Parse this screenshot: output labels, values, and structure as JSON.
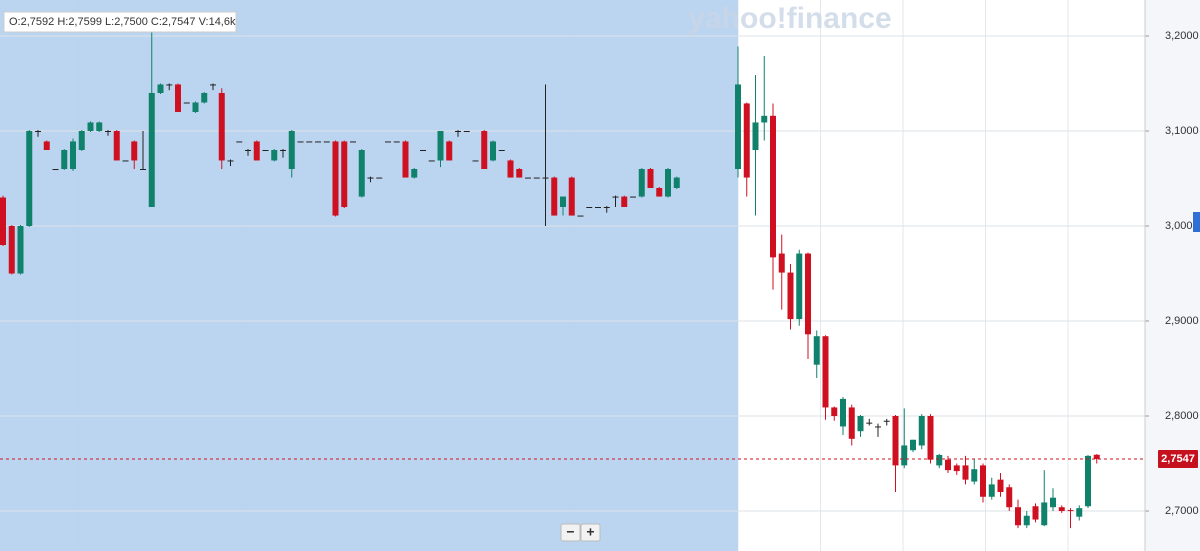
{
  "chart_data": {
    "type": "candlestick",
    "ohlc_label": "O:2,7592  H:2,7599  L:2,7500  C:2,7547  V:14,6k",
    "watermark": "yahoo!finance",
    "zoom_buttons": [
      "−",
      "+"
    ],
    "up_color": "#10816b",
    "down_color": "#cf1020",
    "flat_color": "#222222",
    "grid": true,
    "ylim": [
      2.6579,
      3.2379
    ],
    "yticks": [
      {
        "value": 3.2,
        "label": "3,2000"
      },
      {
        "value": 3.1,
        "label": "3,1000"
      },
      {
        "value": 3.0,
        "label": "3,0000"
      },
      {
        "value": 2.9,
        "label": "2,9000"
      },
      {
        "value": 2.8,
        "label": "2,8000"
      },
      {
        "value": 2.7,
        "label": "2,7000"
      }
    ],
    "last_price": {
      "value": 2.7547,
      "label": "2,7547"
    },
    "open": [
      3.03,
      3.0,
      2.95,
      3.0,
      3.1,
      3.089,
      3.06,
      3.06,
      3.06,
      3.08,
      3.1,
      3.1,
      3.1,
      3.1,
      3.069,
      3.089,
      3.06,
      3.02,
      3.14,
      3.149,
      3.149,
      3.13,
      3.12,
      3.13,
      3.149,
      3.14,
      3.069,
      3.089,
      3.08,
      3.089,
      3.08,
      3.069,
      3.08,
      3.06,
      3.089,
      3.089,
      3.089,
      3.089,
      3.089,
      3.089,
      3.089,
      3.031,
      3.051,
      3.051,
      3.089,
      3.089,
      3.089,
      3.051,
      3.08,
      3.069,
      3.069,
      3.089,
      3.1,
      3.1,
      3.069,
      3.1,
      3.069,
      3.08,
      3.069,
      3.06,
      3.051,
      3.051,
      3.051,
      3.051,
      3.02,
      3.051,
      3.011,
      3.02,
      3.02,
      3.02,
      3.031,
      3.031,
      3.031,
      3.031,
      3.06,
      3.04,
      3.031,
      3.04,
      null,
      null,
      null,
      null,
      null,
      null,
      3.06,
      3.129,
      3.08,
      3.109,
      3.116,
      2.971,
      2.951,
      2.902,
      2.971,
      2.854,
      2.884,
      2.809,
      2.789,
      2.809,
      2.784,
      2.793,
      2.789,
      2.795,
      2.8,
      2.748,
      2.764,
      2.769,
      2.8,
      2.748,
      2.754,
      2.748,
      2.748,
      2.731,
      2.748,
      2.715,
      2.733,
      2.725,
      2.704,
      2.685,
      2.705,
      2.685,
      2.704,
      2.704,
      2.701,
      2.694,
      2.705,
      2.7592
    ],
    "high": [
      3.032,
      3.001,
      3.001,
      3.101,
      3.101,
      3.09,
      3.06,
      3.081,
      3.092,
      3.101,
      3.11,
      3.11,
      3.101,
      3.101,
      3.069,
      3.09,
      3.1,
      3.206,
      3.15,
      3.15,
      3.15,
      3.13,
      3.131,
      3.141,
      3.15,
      3.145,
      3.07,
      3.089,
      3.081,
      3.09,
      3.08,
      3.081,
      3.081,
      3.101,
      3.089,
      3.089,
      3.089,
      3.089,
      3.09,
      3.09,
      3.089,
      3.081,
      3.052,
      3.051,
      3.089,
      3.089,
      3.09,
      3.061,
      3.08,
      3.069,
      3.1,
      3.09,
      3.101,
      3.1,
      3.069,
      3.101,
      3.09,
      3.08,
      3.07,
      3.061,
      3.051,
      3.051,
      3.149,
      3.052,
      3.031,
      3.052,
      3.011,
      3.02,
      3.02,
      3.021,
      3.032,
      3.032,
      3.031,
      3.061,
      3.061,
      3.041,
      3.061,
      3.052,
      null,
      null,
      null,
      null,
      null,
      null,
      3.189,
      3.13,
      3.159,
      3.179,
      3.129,
      2.991,
      2.96,
      2.975,
      2.972,
      2.89,
      2.885,
      2.81,
      2.82,
      2.812,
      2.801,
      2.797,
      2.792,
      2.797,
      2.801,
      2.808,
      2.775,
      2.802,
      2.802,
      2.76,
      2.758,
      2.75,
      2.758,
      2.755,
      2.75,
      2.735,
      2.74,
      2.728,
      2.712,
      2.7,
      2.708,
      2.743,
      2.724,
      2.706,
      2.703,
      2.706,
      2.759,
      2.7599
    ],
    "low": [
      2.979,
      2.949,
      2.949,
      2.999,
      3.094,
      3.08,
      3.06,
      3.059,
      3.058,
      3.079,
      3.099,
      3.099,
      3.095,
      3.069,
      3.069,
      3.06,
      3.06,
      3.02,
      3.139,
      3.143,
      3.12,
      3.13,
      3.119,
      3.129,
      3.143,
      3.06,
      3.063,
      3.089,
      3.074,
      3.069,
      3.08,
      3.068,
      3.072,
      3.051,
      3.089,
      3.089,
      3.089,
      3.089,
      3.01,
      3.019,
      3.089,
      3.03,
      3.046,
      3.051,
      3.089,
      3.089,
      3.051,
      3.05,
      3.08,
      3.069,
      3.062,
      3.069,
      3.094,
      3.1,
      3.069,
      3.06,
      3.068,
      3.08,
      3.051,
      3.051,
      3.051,
      3.051,
      3.0,
      3.011,
      3.011,
      3.011,
      3.011,
      3.02,
      3.02,
      3.014,
      3.02,
      3.02,
      3.031,
      3.03,
      3.04,
      3.031,
      3.03,
      3.039,
      null,
      null,
      null,
      null,
      null,
      null,
      3.051,
      3.031,
      3.011,
      3.09,
      2.933,
      2.912,
      2.891,
      2.895,
      2.86,
      2.84,
      2.796,
      2.795,
      2.78,
      2.769,
      2.778,
      2.79,
      2.778,
      2.79,
      2.72,
      2.745,
      2.762,
      2.765,
      2.75,
      2.745,
      2.74,
      2.738,
      2.728,
      2.728,
      2.709,
      2.712,
      2.715,
      2.7,
      2.682,
      2.682,
      2.688,
      2.684,
      2.7,
      2.698,
      2.682,
      2.69,
      2.703,
      2.75
    ],
    "close": [
      2.98,
      2.95,
      3.0,
      3.1,
      3.1,
      3.08,
      3.06,
      3.08,
      3.089,
      3.1,
      3.109,
      3.109,
      3.1,
      3.069,
      3.069,
      3.069,
      3.06,
      3.14,
      3.149,
      3.149,
      3.12,
      3.13,
      3.13,
      3.14,
      3.149,
      3.069,
      3.069,
      3.089,
      3.08,
      3.069,
      3.08,
      3.08,
      3.08,
      3.1,
      3.089,
      3.089,
      3.089,
      3.089,
      3.011,
      3.02,
      3.089,
      3.08,
      3.051,
      3.051,
      3.089,
      3.089,
      3.051,
      3.06,
      3.08,
      3.069,
      3.1,
      3.069,
      3.1,
      3.1,
      3.069,
      3.06,
      3.089,
      3.08,
      3.051,
      3.051,
      3.051,
      3.051,
      3.051,
      3.011,
      3.031,
      3.011,
      3.011,
      3.02,
      3.02,
      3.02,
      3.031,
      3.02,
      3.031,
      3.06,
      3.04,
      3.031,
      3.06,
      3.051,
      null,
      null,
      null,
      null,
      null,
      null,
      3.149,
      3.051,
      3.109,
      3.116,
      2.967,
      2.951,
      2.902,
      2.971,
      2.886,
      2.884,
      2.809,
      2.8,
      2.818,
      2.776,
      2.8,
      2.793,
      2.789,
      2.795,
      2.748,
      2.769,
      2.775,
      2.8,
      2.754,
      2.759,
      2.743,
      2.742,
      2.733,
      2.744,
      2.715,
      2.728,
      2.72,
      2.704,
      2.685,
      2.695,
      2.691,
      2.709,
      2.714,
      2.7,
      2.7,
      2.703,
      2.758,
      2.7547
    ]
  }
}
